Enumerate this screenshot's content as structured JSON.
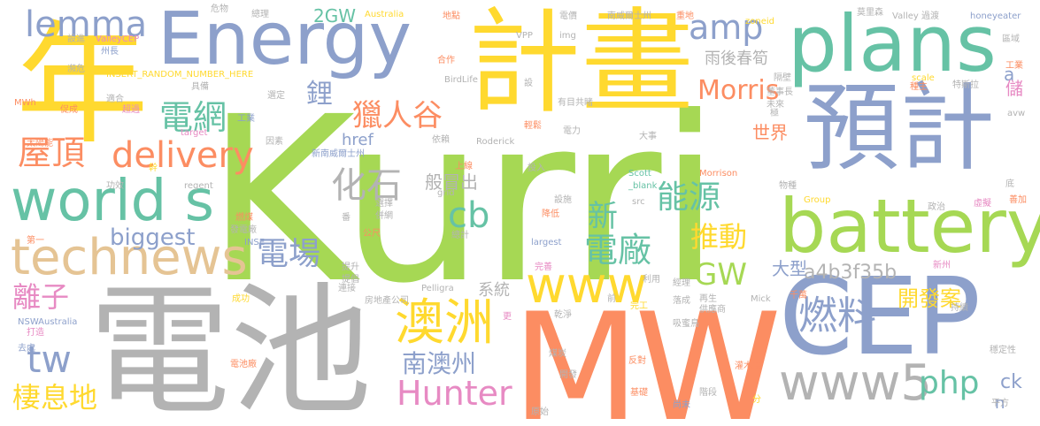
{
  "cloud": {
    "palette": {
      "green": "#a6d854",
      "orange": "#fc8d62",
      "blue": "#8da0cb",
      "yellow": "#ffd92f",
      "teal": "#66c2a5",
      "pink": "#e78ac3",
      "tan": "#e5c494",
      "gray": "#b3b3b3"
    },
    "words": {
      "kurri": "Kurri",
      "dianchi": "電池",
      "mw": "MW",
      "cep": "CEP",
      "nian": "年",
      "jihua": "計畫",
      "yuji": "預計",
      "energy": "Energy",
      "plans": "plans",
      "battery": "battery",
      "worlds": "world s",
      "technews": "technews",
      "www": "www",
      "www5": "www5",
      "aozhou": "澳洲",
      "nanaozhou": "南澳州",
      "hunter": "Hunter",
      "morris": "Morris",
      "ranliao": "燃料",
      "lemma": "lemma",
      "amp": "amp",
      "delivery": "delivery",
      "wuding": "屋頂",
      "dianwang": "電網",
      "li": "鋰",
      "lierengu": "獵人谷",
      "huashi": "化石",
      "cb": "cb",
      "xin": "新",
      "dianchang_f": "電廠",
      "nengyuan": "能源",
      "tuidong": "推動",
      "gw": "GW",
      "biggest": "biggest",
      "dianchang_c": "電場",
      "lizi": "離子",
      "tw": "tw",
      "qixidi": "棲息地",
      "php": "php",
      "ck": "ck",
      "n": "n",
      "a4b3f35b": "a4b3f35b",
      "kaifaan": "開發案",
      "daxing": "大型",
      "xitong": "系統",
      "yuhouchunsun": "雨後春筍",
      "banmaochu": "般冒出",
      "href": "href",
      "shijie": "世界",
      "twogw": "2GW",
      "a": "a",
      "chu": "儲",
      "weixian": "危物",
      "zongli": "總理",
      "australia": "Australia",
      "didian": "地點",
      "dianjia": "電價",
      "nanweiershi": "南威爾士州",
      "zhongdi": "重地",
      "zoneid": "zoneid",
      "molisen": "莫里森",
      "valley_guodu": "Valley 過渡",
      "honeyeater": "honeyeater",
      "sheji": "設進",
      "valleycep": "ValleyCEP",
      "img": "img",
      "vpp": "VPP",
      "zhouzhang": "州長",
      "binwei": "瀕危",
      "insert": "INSERT_RANDOM_NUMBER_HERE",
      "birdlife": "BirdLife",
      "hezuo": "合作",
      "she": "設",
      "gebi": "隔壁",
      "zhongzhu": "種主",
      "scale": "scale",
      "tesila": "特斯拉",
      "quyu": "區域",
      "gongye": "工業",
      "mwh": "MWh",
      "cujin": "促成",
      "shihe": "適合",
      "xuanding": "選定",
      "jubei": "具備",
      "chaoguo": "超過",
      "yimugongdu": "有目共睹",
      "dongshizhang": "董事長",
      "weilai": "未來",
      "ji": "極",
      "avw": "avw",
      "taiyangneng": "太陽能",
      "target": "target",
      "gongdian": "工業",
      "yinsu": "因素",
      "xinnanweiershi": "新南威爾士州",
      "yilai": "依賴",
      "qingsong": "輕鬆",
      "dianli": "電力",
      "dashi": "大事",
      "roderick": "Roderick",
      "gan": "幹",
      "regent": "regent",
      "scott": "Scott",
      "blank": "_blank",
      "morrison": "Morrison",
      "wuzhong": "物種",
      "group": "Group",
      "di": "底",
      "gongxiao": "功效",
      "shangxian": "上線",
      "tourujian": "投入",
      "zhengzhi": "政治",
      "xuding": "虛擬",
      "shanjia": "善加",
      "diyi": "第一",
      "ranmei": "燃煤",
      "xuanze": "選擇",
      "sheshi": "設施",
      "grid": "grid",
      "src": "src",
      "fadianchang": "發電廠",
      "bingneng": "併網",
      "jiangdi": "降低",
      "zongji": "總計",
      "wendingxing": "穩定性",
      "dian": "番",
      "inse": "INSE",
      "gongchi": "公尺",
      "largest": "largest",
      "tisheng": "提升",
      "tichang": "提倡",
      "wanshan": "完善",
      "chenggong": "成功",
      "nswaustralia": "NSWAustralia",
      "dazao": "打造",
      "quchu": "去處",
      "lianjie": "連接",
      "fangdichan": "房地產公司",
      "pelligra": "Pelligra",
      "jingli": "經理",
      "liyong": "利用",
      "qian": "前",
      "zaisheng": "再生",
      "mick": "Mick",
      "qianwan": "千萬",
      "chixu": "持續",
      "gongyingshang": "供應商",
      "luocheng": "落成",
      "wangong": "完工",
      "xinzhou": "新州",
      "ganjing": "乾淨",
      "geng": "更",
      "meitan": "煤炭",
      "fandui": "反對",
      "ximiniao": "吸蜜鳥",
      "guanmuchong": "灌木叢",
      "dianchichang": "電池廠",
      "kaijian": "開發",
      "jichu": "基礎",
      "jieduan": "階段",
      "shangwei": "尚未",
      "pingfang": "平方",
      "yuanshi": "原始",
      "fen": "分"
    }
  }
}
